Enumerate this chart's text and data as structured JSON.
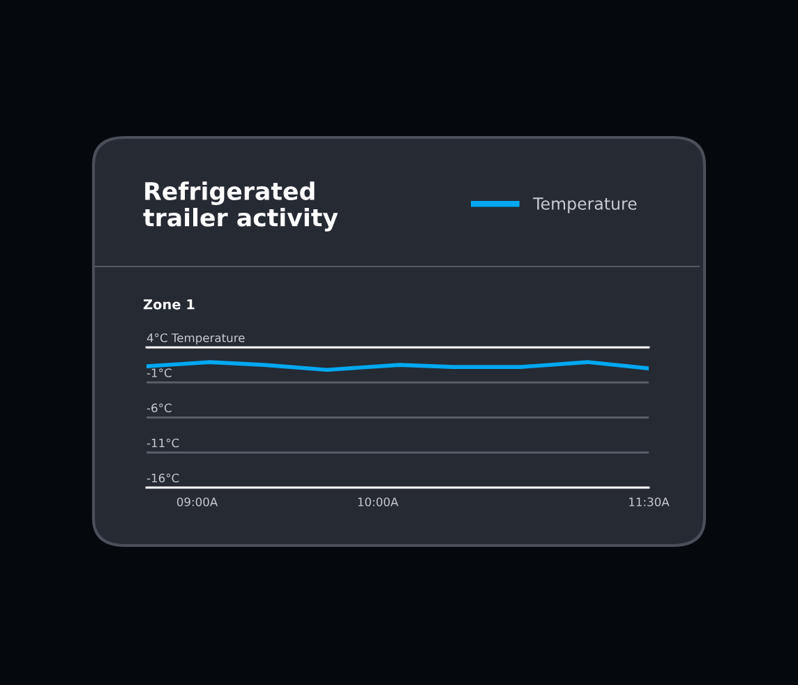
{
  "chart_data": {
    "type": "line",
    "title": "Refrigerated\ntrailer activity",
    "subtitle": "Zone 1",
    "x": [
      8.72,
      9.07,
      9.37,
      9.72,
      10.12,
      10.42,
      10.79,
      11.16,
      11.5
    ],
    "series": [
      {
        "name": "Temperature",
        "color": "#00a8f0",
        "values": [
          1.3,
          1.9,
          1.5,
          0.8,
          1.5,
          1.2,
          1.2,
          1.9,
          1.0
        ]
      }
    ],
    "xlim": [
      8.72,
      11.5
    ],
    "xticks": [
      {
        "value": 9,
        "label": "09:00A"
      },
      {
        "value": 10,
        "label": "10:00A"
      },
      {
        "value": 11.5,
        "label": "11:30A"
      }
    ],
    "ylim": [
      -16,
      4
    ],
    "yticks": [
      {
        "value": 4,
        "label": "4°C Temperature"
      },
      {
        "value": -1,
        "label": "-1°C"
      },
      {
        "value": -6,
        "label": "-6°C"
      },
      {
        "value": -11,
        "label": "-11°C"
      },
      {
        "value": -16,
        "label": "-16°C"
      }
    ],
    "grid": "y",
    "legend": "top right",
    "marker": "none",
    "line_style": "solid"
  }
}
